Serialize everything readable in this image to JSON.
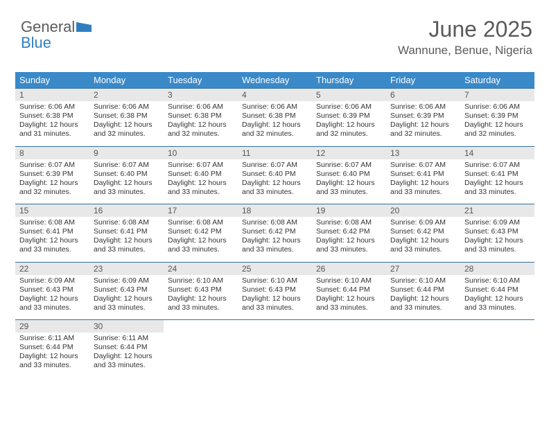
{
  "brand": {
    "part1": "General",
    "part2": "Blue"
  },
  "title": {
    "month": "June 2025",
    "location": "Wannune, Benue, Nigeria"
  },
  "colors": {
    "header_bg": "#3a89c9",
    "header_text": "#ffffff",
    "daynum_bg": "#e8e8e8",
    "border": "#2f6fa0",
    "logo_gray": "#5a5a5a",
    "logo_blue": "#2f7fbf"
  },
  "weekdays": [
    "Sunday",
    "Monday",
    "Tuesday",
    "Wednesday",
    "Thursday",
    "Friday",
    "Saturday"
  ],
  "weeks": [
    {
      "nums": [
        "1",
        "2",
        "3",
        "4",
        "5",
        "6",
        "7"
      ],
      "cells": [
        {
          "sr": "6:06 AM",
          "ss": "6:38 PM",
          "dl": "12 hours and 31 minutes."
        },
        {
          "sr": "6:06 AM",
          "ss": "6:38 PM",
          "dl": "12 hours and 32 minutes."
        },
        {
          "sr": "6:06 AM",
          "ss": "6:38 PM",
          "dl": "12 hours and 32 minutes."
        },
        {
          "sr": "6:06 AM",
          "ss": "6:38 PM",
          "dl": "12 hours and 32 minutes."
        },
        {
          "sr": "6:06 AM",
          "ss": "6:39 PM",
          "dl": "12 hours and 32 minutes."
        },
        {
          "sr": "6:06 AM",
          "ss": "6:39 PM",
          "dl": "12 hours and 32 minutes."
        },
        {
          "sr": "6:06 AM",
          "ss": "6:39 PM",
          "dl": "12 hours and 32 minutes."
        }
      ]
    },
    {
      "nums": [
        "8",
        "9",
        "10",
        "11",
        "12",
        "13",
        "14"
      ],
      "cells": [
        {
          "sr": "6:07 AM",
          "ss": "6:39 PM",
          "dl": "12 hours and 32 minutes."
        },
        {
          "sr": "6:07 AM",
          "ss": "6:40 PM",
          "dl": "12 hours and 33 minutes."
        },
        {
          "sr": "6:07 AM",
          "ss": "6:40 PM",
          "dl": "12 hours and 33 minutes."
        },
        {
          "sr": "6:07 AM",
          "ss": "6:40 PM",
          "dl": "12 hours and 33 minutes."
        },
        {
          "sr": "6:07 AM",
          "ss": "6:40 PM",
          "dl": "12 hours and 33 minutes."
        },
        {
          "sr": "6:07 AM",
          "ss": "6:41 PM",
          "dl": "12 hours and 33 minutes."
        },
        {
          "sr": "6:07 AM",
          "ss": "6:41 PM",
          "dl": "12 hours and 33 minutes."
        }
      ]
    },
    {
      "nums": [
        "15",
        "16",
        "17",
        "18",
        "19",
        "20",
        "21"
      ],
      "cells": [
        {
          "sr": "6:08 AM",
          "ss": "6:41 PM",
          "dl": "12 hours and 33 minutes."
        },
        {
          "sr": "6:08 AM",
          "ss": "6:41 PM",
          "dl": "12 hours and 33 minutes."
        },
        {
          "sr": "6:08 AM",
          "ss": "6:42 PM",
          "dl": "12 hours and 33 minutes."
        },
        {
          "sr": "6:08 AM",
          "ss": "6:42 PM",
          "dl": "12 hours and 33 minutes."
        },
        {
          "sr": "6:08 AM",
          "ss": "6:42 PM",
          "dl": "12 hours and 33 minutes."
        },
        {
          "sr": "6:09 AM",
          "ss": "6:42 PM",
          "dl": "12 hours and 33 minutes."
        },
        {
          "sr": "6:09 AM",
          "ss": "6:43 PM",
          "dl": "12 hours and 33 minutes."
        }
      ]
    },
    {
      "nums": [
        "22",
        "23",
        "24",
        "25",
        "26",
        "27",
        "28"
      ],
      "cells": [
        {
          "sr": "6:09 AM",
          "ss": "6:43 PM",
          "dl": "12 hours and 33 minutes."
        },
        {
          "sr": "6:09 AM",
          "ss": "6:43 PM",
          "dl": "12 hours and 33 minutes."
        },
        {
          "sr": "6:10 AM",
          "ss": "6:43 PM",
          "dl": "12 hours and 33 minutes."
        },
        {
          "sr": "6:10 AM",
          "ss": "6:43 PM",
          "dl": "12 hours and 33 minutes."
        },
        {
          "sr": "6:10 AM",
          "ss": "6:44 PM",
          "dl": "12 hours and 33 minutes."
        },
        {
          "sr": "6:10 AM",
          "ss": "6:44 PM",
          "dl": "12 hours and 33 minutes."
        },
        {
          "sr": "6:10 AM",
          "ss": "6:44 PM",
          "dl": "12 hours and 33 minutes."
        }
      ]
    },
    {
      "nums": [
        "29",
        "30",
        "",
        "",
        "",
        "",
        ""
      ],
      "cells": [
        {
          "sr": "6:11 AM",
          "ss": "6:44 PM",
          "dl": "12 hours and 33 minutes."
        },
        {
          "sr": "6:11 AM",
          "ss": "6:44 PM",
          "dl": "12 hours and 33 minutes."
        },
        null,
        null,
        null,
        null,
        null
      ]
    }
  ],
  "labels": {
    "sunrise": "Sunrise: ",
    "sunset": "Sunset: ",
    "daylight": "Daylight: "
  }
}
